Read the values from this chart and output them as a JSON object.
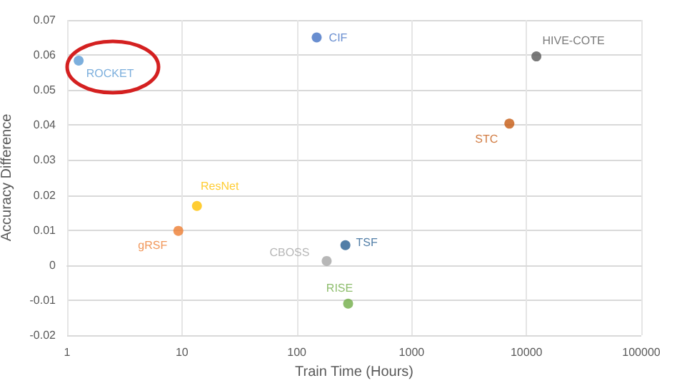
{
  "chart_data": {
    "type": "scatter",
    "xlabel": "Train Time (Hours)",
    "ylabel": "Accuracy Difference",
    "log": "x",
    "grid": true,
    "legend": false,
    "marker": "circle",
    "xlim": [
      1,
      100000
    ],
    "xticks": [
      1,
      10,
      100,
      1000,
      10000,
      100000
    ],
    "ylim": [
      -0.02,
      0.07
    ],
    "yticks": [
      -0.02,
      -0.01,
      0,
      0.01,
      0.02,
      0.03,
      0.04,
      0.05,
      0.06,
      0.07
    ],
    "series": [
      {
        "name": "ROCKET",
        "color": "#5b9bd5",
        "x": [
          1.26
        ],
        "values": [
          0.0584
        ]
      },
      {
        "name": "CIF",
        "color": "#4472c4",
        "x": [
          149
        ],
        "values": [
          0.065
        ]
      },
      {
        "name": "HIVE-COTE",
        "color": "#595959",
        "x": [
          12200
        ],
        "values": [
          0.0596
        ]
      },
      {
        "name": "STC",
        "color": "#c55a11",
        "x": [
          7100
        ],
        "values": [
          0.0404
        ]
      },
      {
        "name": "ResNet",
        "color": "#ffc000",
        "x": [
          13.5
        ],
        "values": [
          0.0169
        ]
      },
      {
        "name": "gRSF",
        "color": "#ed7d31",
        "x": [
          9.3
        ],
        "values": [
          0.0098
        ]
      },
      {
        "name": "CBOSS",
        "color": "#a5a5a5",
        "x": [
          182
        ],
        "values": [
          0.0012
        ]
      },
      {
        "name": "TSF",
        "color": "#255e91",
        "x": [
          265
        ],
        "values": [
          0.0057
        ]
      },
      {
        "name": "RISE",
        "color": "#70ad47",
        "x": [
          280
        ],
        "values": [
          -0.011
        ]
      }
    ]
  }
}
